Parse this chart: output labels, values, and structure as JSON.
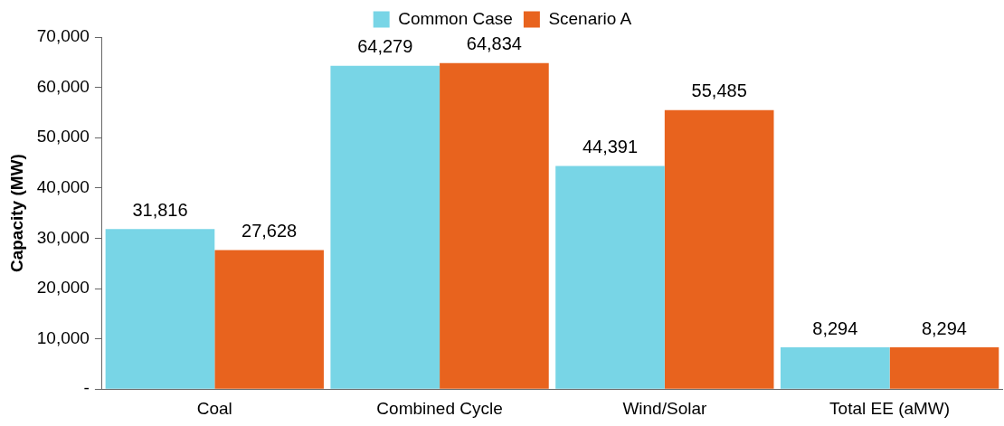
{
  "chart_data": {
    "type": "bar",
    "ylabel": "Capacity (MW)",
    "categories": [
      "Coal",
      "Combined Cycle",
      "Wind/Solar",
      "Total EE (aMW)"
    ],
    "series": [
      {
        "name": "Common Case",
        "color": "#78d5e6",
        "values": [
          31816,
          64279,
          44391,
          8294
        ],
        "value_labels": [
          "31,816",
          "64,279",
          "44,391",
          "8,294"
        ]
      },
      {
        "name": "Scenario A",
        "color": "#e8631e",
        "values": [
          27628,
          64834,
          55485,
          8294
        ],
        "value_labels": [
          "27,628",
          "64,834",
          "55,485",
          "8,294"
        ]
      }
    ],
    "ylim": [
      0,
      70000
    ],
    "yticks": [
      {
        "value": 0,
        "label": "-"
      },
      {
        "value": 10000,
        "label": "10,000"
      },
      {
        "value": 20000,
        "label": "20,000"
      },
      {
        "value": 30000,
        "label": "30,000"
      },
      {
        "value": 40000,
        "label": "40,000"
      },
      {
        "value": 50000,
        "label": "50,000"
      },
      {
        "value": 60000,
        "label": "60,000"
      },
      {
        "value": 70000,
        "label": "70,000"
      }
    ],
    "legend": "top",
    "grid": false
  }
}
